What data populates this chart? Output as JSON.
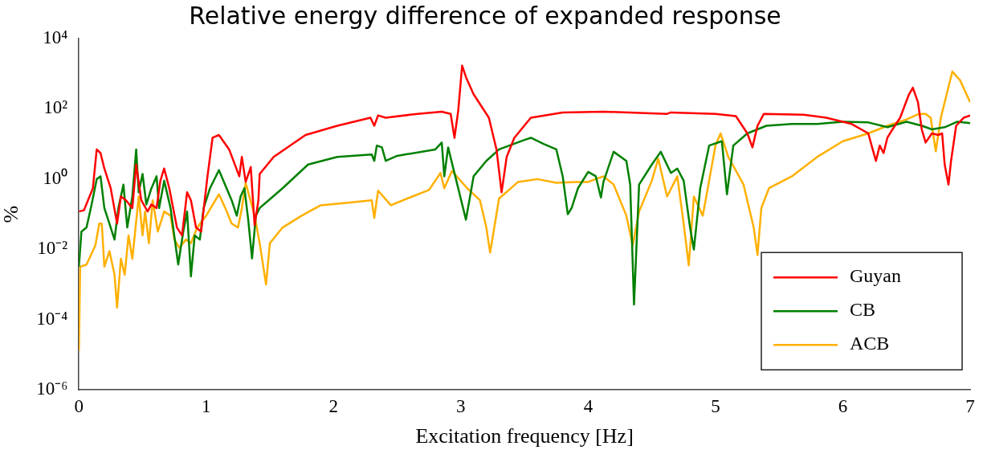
{
  "chart_data": {
    "type": "line",
    "title": "Relative energy difference of expanded response",
    "xlabel": "Excitation frequency [Hz]",
    "ylabel": "%",
    "log": "y",
    "grid": false,
    "legend": "bottom right",
    "xlim": [
      0,
      7
    ],
    "xticks": [
      0,
      1,
      2,
      3,
      4,
      5,
      6,
      7
    ],
    "ylim": [
      1e-06,
      10000
    ],
    "yticks": [
      {
        "value": 1e-06,
        "label": "10⁻⁶"
      },
      {
        "value": 0.0001,
        "label": "10⁻⁴"
      },
      {
        "value": 0.01,
        "label": "10⁻²"
      },
      {
        "value": 1,
        "label": "10⁰"
      },
      {
        "value": 100,
        "label": "10²"
      },
      {
        "value": 10000,
        "label": "10⁴"
      }
    ],
    "series": [
      {
        "name": "Guyan",
        "color": "#ff0000",
        "x": [
          0,
          0.04,
          0.11,
          0.14,
          0.17,
          0.2,
          0.25,
          0.3,
          0.33,
          0.37,
          0.42,
          0.45,
          0.49,
          0.54,
          0.57,
          0.61,
          0.64,
          0.67,
          0.71,
          0.77,
          0.81,
          0.85,
          0.88,
          0.92,
          0.96,
          1.01,
          1.05,
          1.1,
          1.18,
          1.26,
          1.28,
          1.31,
          1.35,
          1.38,
          1.41,
          1.42,
          1.53,
          1.78,
          2.03,
          2.29,
          2.32,
          2.35,
          2.41,
          2.66,
          2.85,
          2.92,
          2.95,
          2.98,
          3.01,
          3.04,
          3.1,
          3.22,
          3.28,
          3.32,
          3.36,
          3.42,
          3.55,
          3.8,
          4.12,
          4.62,
          4.65,
          5.0,
          5.16,
          5.25,
          5.29,
          5.33,
          5.38,
          5.69,
          5.87,
          6.07,
          6.2,
          6.23,
          6.26,
          6.29,
          6.32,
          6.35,
          6.39,
          6.45,
          6.52,
          6.55,
          6.59,
          6.62,
          6.65,
          6.7,
          6.75,
          6.78,
          6.8,
          6.83,
          6.85,
          6.89,
          6.95,
          7.0
        ],
        "values": [
          0.12,
          0.13,
          0.55,
          7,
          5.5,
          2,
          0.55,
          0.054,
          0.32,
          0.25,
          0.15,
          2.6,
          0.25,
          0.12,
          0.19,
          0.15,
          0.9,
          2,
          0.55,
          0.042,
          0.025,
          0.42,
          0.25,
          0.042,
          0.032,
          1.2,
          15,
          18,
          7,
          1.2,
          4.3,
          0.83,
          2.2,
          0.049,
          0.25,
          1.4,
          4.3,
          18,
          33,
          56,
          33,
          65,
          56,
          72,
          83,
          72,
          15,
          93,
          1700,
          800,
          260,
          56,
          7,
          0.42,
          4.3,
          15,
          56,
          79,
          83,
          72,
          79,
          72,
          62,
          20,
          8,
          33,
          72,
          68,
          56,
          37,
          20,
          8,
          3.3,
          9,
          5.5,
          15,
          26,
          56,
          260,
          400,
          155,
          26,
          11,
          20,
          18,
          20,
          2.6,
          0.7,
          3.3,
          33,
          56,
          65
        ]
      },
      {
        "name": "CB",
        "color": "#008000",
        "x": [
          0,
          0.02,
          0.06,
          0.1,
          0.14,
          0.17,
          0.2,
          0.24,
          0.28,
          0.31,
          0.35,
          0.38,
          0.42,
          0.45,
          0.47,
          0.5,
          0.53,
          0.57,
          0.61,
          0.63,
          0.67,
          0.72,
          0.78,
          0.82,
          0.85,
          0.88,
          0.91,
          0.95,
          0.98,
          1.03,
          1.1,
          1.16,
          1.2,
          1.24,
          1.27,
          1.3,
          1.33,
          1.36,
          1.39,
          1.42,
          1.6,
          1.8,
          2.03,
          2.3,
          2.32,
          2.34,
          2.38,
          2.41,
          2.5,
          2.8,
          2.85,
          2.87,
          2.9,
          3.04,
          3.1,
          3.2,
          3.3,
          3.5,
          3.55,
          3.65,
          3.75,
          3.8,
          3.84,
          3.87,
          3.92,
          4.0,
          4.06,
          4.1,
          4.12,
          4.2,
          4.3,
          4.33,
          4.36,
          4.4,
          4.5,
          4.57,
          4.65,
          4.7,
          4.75,
          4.8,
          4.83,
          4.88,
          4.95,
          5.05,
          5.09,
          5.14,
          5.25,
          5.4,
          5.6,
          5.8,
          6.0,
          6.2,
          6.35,
          6.5,
          6.62,
          6.7,
          6.8,
          6.9,
          7.0
        ],
        "values": [
          0.0032,
          0.032,
          0.042,
          0.19,
          1.0,
          1.2,
          0.15,
          0.054,
          0.019,
          0.15,
          0.7,
          0.042,
          0.32,
          7,
          0.42,
          1.4,
          0.19,
          0.55,
          1.2,
          0.15,
          0.9,
          0.15,
          0.0037,
          0.032,
          0.12,
          0.0017,
          0.025,
          0.019,
          0.15,
          0.55,
          1.8,
          0.55,
          0.25,
          0.091,
          0.32,
          0.55,
          0.07,
          0.0055,
          0.091,
          0.15,
          0.55,
          2.6,
          4.3,
          5,
          3.3,
          9,
          8,
          3.3,
          4.6,
          7,
          11,
          1.2,
          8,
          0.07,
          1.2,
          3.3,
          7,
          13,
          15,
          10,
          7,
          1.2,
          0.1,
          0.15,
          0.55,
          1.6,
          1.2,
          0.3,
          0.83,
          6,
          3.3,
          0.7,
          0.00027,
          0.7,
          2.6,
          6,
          1.5,
          2,
          0.9,
          0.042,
          0.0099,
          0.55,
          9,
          12,
          0.37,
          9,
          20,
          33,
          37,
          37,
          43,
          41,
          30,
          43,
          33,
          26,
          30,
          43,
          39
        ]
      },
      {
        "name": "ACB",
        "color": "#ffb000",
        "x": [
          0,
          0.01,
          0.06,
          0.13,
          0.16,
          0.18,
          0.2,
          0.24,
          0.28,
          0.3,
          0.33,
          0.36,
          0.39,
          0.42,
          0.47,
          0.5,
          0.52,
          0.55,
          0.58,
          0.62,
          0.67,
          0.72,
          0.75,
          0.79,
          0.84,
          0.88,
          0.93,
          1.0,
          1.1,
          1.15,
          1.2,
          1.25,
          1.28,
          1.31,
          1.38,
          1.42,
          1.47,
          1.5,
          1.6,
          1.75,
          1.9,
          2.1,
          2.3,
          2.32,
          2.35,
          2.45,
          2.6,
          2.75,
          2.84,
          2.87,
          2.93,
          3.05,
          3.15,
          3.2,
          3.23,
          3.3,
          3.45,
          3.6,
          3.75,
          3.9,
          4.0,
          4.12,
          4.2,
          4.3,
          4.35,
          4.4,
          4.5,
          4.55,
          4.62,
          4.7,
          4.75,
          4.79,
          4.83,
          4.9,
          4.95,
          5.0,
          5.04,
          5.1,
          5.17,
          5.22,
          5.3,
          5.33,
          5.36,
          5.42,
          5.6,
          5.8,
          6.0,
          6.2,
          6.35,
          6.5,
          6.6,
          6.65,
          6.69,
          6.73,
          6.77,
          6.86,
          6.92,
          7.0
        ],
        "values": [
          1.3e-05,
          0.0032,
          0.0037,
          0.013,
          0.054,
          0.054,
          0.0032,
          0.0089,
          0.0019,
          0.00022,
          0.0054,
          0.0019,
          0.025,
          0.0054,
          0.32,
          0.025,
          0.12,
          0.015,
          0.25,
          0.032,
          0.12,
          0.091,
          0.019,
          0.011,
          0.019,
          0.015,
          0.042,
          0.091,
          0.37,
          0.15,
          0.054,
          0.042,
          0.15,
          0.78,
          0.091,
          0.015,
          0.001,
          0.015,
          0.042,
          0.091,
          0.18,
          0.21,
          0.25,
          0.078,
          0.47,
          0.18,
          0.3,
          0.49,
          1.5,
          0.55,
          1.7,
          0.55,
          0.25,
          0.042,
          0.0081,
          0.28,
          0.83,
          1.0,
          0.78,
          0.83,
          0.83,
          1.2,
          0.7,
          0.091,
          0.013,
          0.12,
          0.9,
          3.8,
          0.32,
          1.2,
          0.054,
          0.0035,
          0.32,
          0.091,
          0.9,
          9.2,
          20,
          4.3,
          1.5,
          0.7,
          0.042,
          0.0069,
          0.15,
          0.55,
          1.2,
          4.3,
          12,
          20,
          33,
          50,
          72,
          72,
          56,
          6.2,
          56,
          1150,
          660,
          155
        ]
      }
    ]
  }
}
